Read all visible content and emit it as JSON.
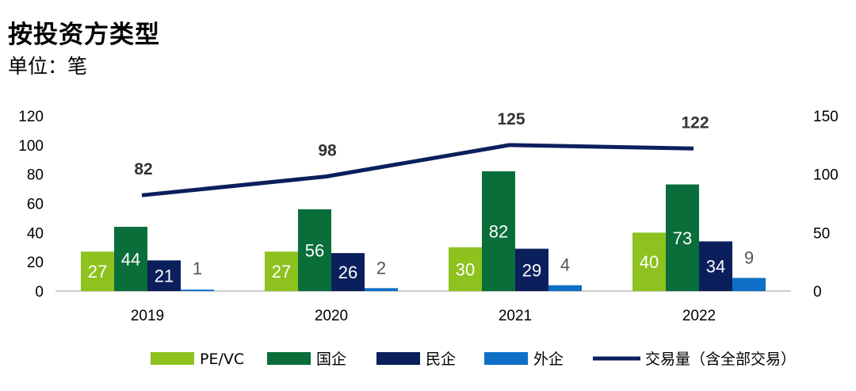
{
  "header": {
    "title": "按投资方类型",
    "subtitle": "单位：笔"
  },
  "chart_data": {
    "type": "bar",
    "categories": [
      "2019",
      "2020",
      "2021",
      "2022"
    ],
    "series": [
      {
        "name": "PE/VC",
        "values": [
          27,
          27,
          30,
          40
        ],
        "color": "#8DC21F",
        "label_color": "#ffffff"
      },
      {
        "name": "国企",
        "values": [
          44,
          56,
          82,
          73
        ],
        "color": "#0A6E3A",
        "label_color": "#ffffff"
      },
      {
        "name": "民企",
        "values": [
          21,
          26,
          29,
          34
        ],
        "color": "#0B1F5C",
        "label_color": "#ffffff"
      },
      {
        "name": "外企",
        "values": [
          1,
          2,
          4,
          9
        ],
        "color": "#0F6FC6",
        "label_color": "#555555"
      }
    ],
    "line_series": {
      "name": "交易量（含全部交易）",
      "values": [
        82,
        98,
        125,
        122
      ],
      "color": "#0B1F5C",
      "axis": "right"
    },
    "ylim_left": [
      0,
      120
    ],
    "yticks_left": [
      0,
      20,
      40,
      60,
      80,
      100,
      120
    ],
    "ylim_right": [
      0,
      150
    ],
    "yticks_right": [
      0,
      50,
      100,
      150
    ],
    "legend_position": "bottom",
    "grid": false
  }
}
